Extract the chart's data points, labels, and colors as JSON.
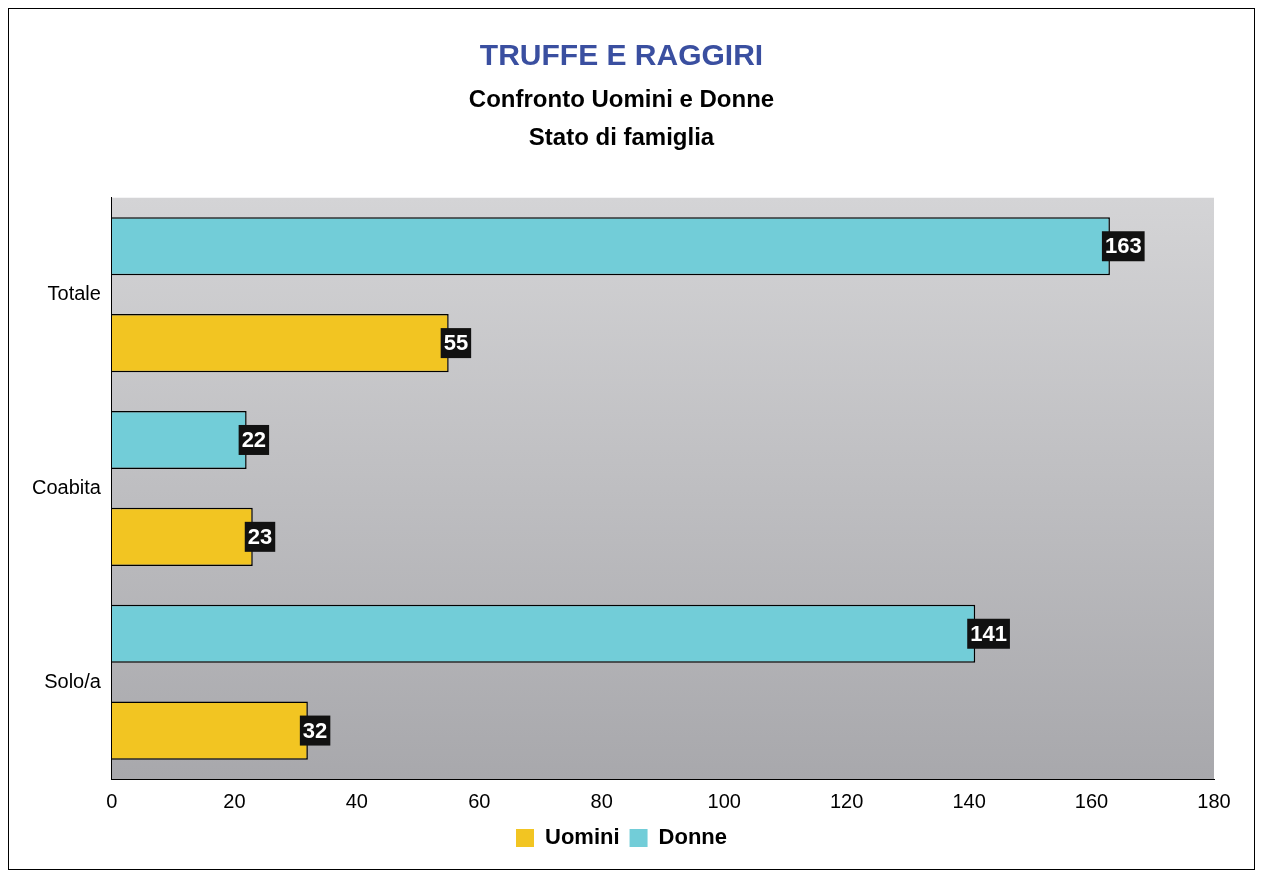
{
  "chart_data": {
    "type": "bar",
    "orientation": "horizontal",
    "title": "TRUFFE E RAGGIRI",
    "subtitle": "Confronto Uomini e Donne\nStato di famiglia",
    "categories": [
      "Totale",
      "Coabita",
      "Solo/a"
    ],
    "series": [
      {
        "name": "Uomini",
        "color": "#f2c522",
        "values": [
          55,
          23,
          32
        ]
      },
      {
        "name": "Donne",
        "color": "#72cdd8",
        "values": [
          163,
          22,
          141
        ]
      }
    ],
    "xlim": [
      0,
      180
    ],
    "xticks": [
      0,
      20,
      40,
      60,
      80,
      100,
      120,
      140,
      160,
      180
    ],
    "grid": false,
    "legend": "bottom",
    "data_labels": true
  }
}
